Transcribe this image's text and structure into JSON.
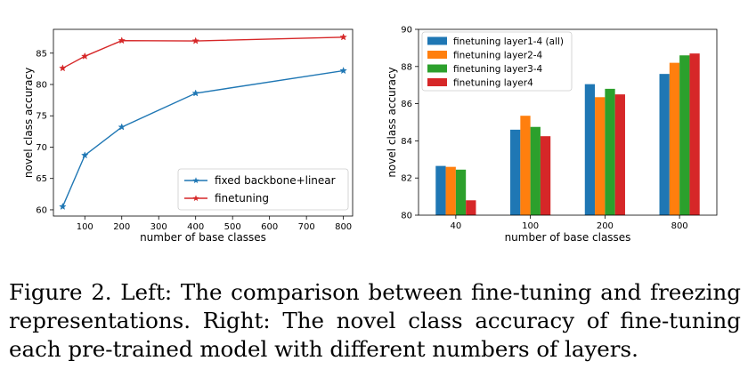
{
  "chart_data": [
    {
      "type": "line",
      "xlabel": "number of base classes",
      "ylabel": "novel class accuracy",
      "xlim": [
        15,
        825
      ],
      "ylim": [
        59,
        88.8
      ],
      "xticks": [
        100,
        200,
        300,
        400,
        500,
        600,
        700,
        800
      ],
      "yticks": [
        60,
        65,
        70,
        75,
        80,
        85
      ],
      "grid": false,
      "legend_position": "lower-right",
      "series": [
        {
          "name": "fixed backbone+linear",
          "color": "#1f77b4",
          "marker": "star",
          "x": [
            40,
            100,
            200,
            400,
            800
          ],
          "y": [
            60.5,
            68.7,
            73.2,
            78.6,
            82.2
          ]
        },
        {
          "name": "finetuning",
          "color": "#d62728",
          "marker": "star",
          "x": [
            40,
            100,
            200,
            400,
            800
          ],
          "y": [
            82.6,
            84.5,
            87.0,
            86.95,
            87.55
          ]
        }
      ]
    },
    {
      "type": "bar",
      "xlabel": "number of base classes",
      "ylabel": "novel class accuracy",
      "categories": [
        "40",
        "100",
        "200",
        "800"
      ],
      "ylim": [
        80,
        90
      ],
      "yticks": [
        80,
        82,
        84,
        86,
        88,
        90
      ],
      "grid": false,
      "legend_position": "upper-left",
      "series": [
        {
          "name": "finetuning layer1-4 (all)",
          "color": "#1f77b4",
          "values": [
            82.65,
            84.6,
            87.05,
            87.6
          ]
        },
        {
          "name": "finetuning layer2-4",
          "color": "#ff7f0e",
          "values": [
            82.6,
            85.35,
            86.35,
            88.2
          ]
        },
        {
          "name": "finetuning layer3-4",
          "color": "#2ca02c",
          "values": [
            82.45,
            84.75,
            86.8,
            88.6
          ]
        },
        {
          "name": "finetuning layer4",
          "color": "#d62728",
          "values": [
            80.8,
            84.25,
            86.5,
            88.7
          ]
        }
      ]
    }
  ],
  "caption": {
    "text": "Figure 2. Left: The comparison between fine-tuning and freezing representations. Right: The novel class accuracy of fine-tuning each pre-trained model with different numbers of layers."
  }
}
